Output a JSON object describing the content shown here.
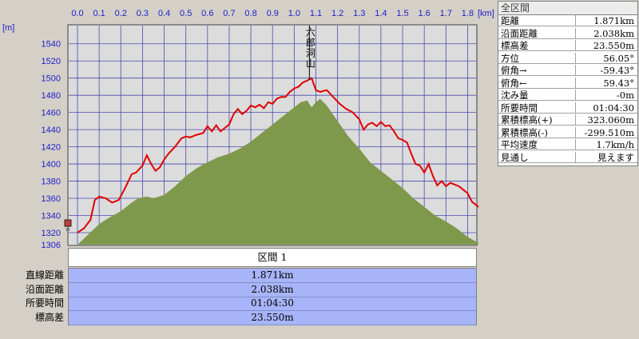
{
  "summary": {
    "title": "全区間",
    "rows": [
      {
        "label": "距離",
        "value": "1.871km"
      },
      {
        "label": "沿面距離",
        "value": "2.038km"
      },
      {
        "label": "標高差",
        "value": "23.550m"
      },
      {
        "label": "方位",
        "value": "56.05°"
      },
      {
        "label": "俯角→",
        "value": "-59.43°"
      },
      {
        "label": "俯角←",
        "value": "59.43°"
      },
      {
        "label": "沈み量",
        "value": "-0m"
      },
      {
        "label": "所要時間",
        "value": "01:04:30"
      },
      {
        "label": "累積標高(+)",
        "value": "323.060m"
      },
      {
        "label": "累積標高(-)",
        "value": "-299.510m"
      },
      {
        "label": "平均速度",
        "value": "1.7km/h"
      },
      {
        "label": "見通し",
        "value": "見えます"
      }
    ]
  },
  "section": {
    "header": "区間 1",
    "labels": [
      "直線距離",
      "沿面距離",
      "所要時間",
      "標高差"
    ],
    "values": [
      "1.871km",
      "2.038km",
      "01:04:30",
      "23.550m"
    ]
  },
  "chart_data": {
    "type": "line",
    "x_unit": "[km]",
    "y_unit": "[m]",
    "xlim": [
      0,
      1.85
    ],
    "ylim": [
      1306,
      1550
    ],
    "x_ticks": [
      "0.0",
      "0.1",
      "0.2",
      "0.3",
      "0.4",
      "0.5",
      "0.6",
      "0.7",
      "0.8",
      "0.9",
      "1.0",
      "1.1",
      "1.2",
      "1.3",
      "1.4",
      "1.5",
      "1.6",
      "1.7",
      "1.8"
    ],
    "y_ticks": [
      "1540",
      "1520",
      "1500",
      "1480",
      "1460",
      "1440",
      "1420",
      "1400",
      "1380",
      "1360",
      "1340",
      "1320",
      "1306"
    ],
    "grid": true,
    "peak_label": "六郎洞山",
    "peak_x": 1.07,
    "series": [
      {
        "role": "route-elevation",
        "color": "#e00000",
        "x": [
          0.0,
          0.03,
          0.06,
          0.08,
          0.1,
          0.13,
          0.16,
          0.19,
          0.22,
          0.25,
          0.27,
          0.3,
          0.32,
          0.34,
          0.36,
          0.38,
          0.4,
          0.42,
          0.45,
          0.48,
          0.5,
          0.52,
          0.55,
          0.58,
          0.6,
          0.62,
          0.64,
          0.66,
          0.68,
          0.7,
          0.72,
          0.74,
          0.76,
          0.78,
          0.8,
          0.82,
          0.84,
          0.86,
          0.88,
          0.9,
          0.92,
          0.94,
          0.96,
          0.98,
          1.0,
          1.02,
          1.04,
          1.06,
          1.08,
          1.1,
          1.12,
          1.15,
          1.18,
          1.21,
          1.24,
          1.27,
          1.3,
          1.32,
          1.34,
          1.36,
          1.38,
          1.4,
          1.42,
          1.44,
          1.46,
          1.48,
          1.5,
          1.52,
          1.54,
          1.56,
          1.58,
          1.6,
          1.62,
          1.64,
          1.66,
          1.68,
          1.7,
          1.72,
          1.74,
          1.76,
          1.78,
          1.8,
          1.82,
          1.85
        ],
        "y": [
          1320,
          1325,
          1335,
          1358,
          1362,
          1360,
          1355,
          1358,
          1372,
          1388,
          1390,
          1398,
          1410,
          1400,
          1392,
          1396,
          1405,
          1412,
          1420,
          1430,
          1432,
          1431,
          1434,
          1436,
          1444,
          1438,
          1445,
          1438,
          1442,
          1446,
          1458,
          1464,
          1458,
          1462,
          1468,
          1466,
          1469,
          1465,
          1472,
          1470,
          1476,
          1478,
          1478,
          1484,
          1488,
          1490,
          1495,
          1497,
          1500,
          1486,
          1484,
          1486,
          1478,
          1470,
          1464,
          1460,
          1452,
          1440,
          1446,
          1448,
          1444,
          1449,
          1444,
          1445,
          1438,
          1430,
          1428,
          1425,
          1412,
          1400,
          1398,
          1390,
          1400,
          1386,
          1375,
          1380,
          1374,
          1378,
          1376,
          1374,
          1370,
          1366,
          1356,
          1350
        ]
      },
      {
        "role": "terrain-cross-section",
        "color": "#7f994c",
        "x": [
          0.0,
          0.05,
          0.1,
          0.15,
          0.2,
          0.25,
          0.28,
          0.32,
          0.35,
          0.4,
          0.45,
          0.5,
          0.55,
          0.6,
          0.65,
          0.7,
          0.75,
          0.8,
          0.85,
          0.9,
          0.95,
          1.0,
          1.03,
          1.06,
          1.08,
          1.1,
          1.12,
          1.15,
          1.2,
          1.25,
          1.3,
          1.35,
          1.4,
          1.45,
          1.5,
          1.55,
          1.6,
          1.65,
          1.7,
          1.75,
          1.8,
          1.85
        ],
        "y": [
          1306,
          1318,
          1330,
          1338,
          1345,
          1355,
          1360,
          1362,
          1360,
          1364,
          1374,
          1386,
          1395,
          1402,
          1408,
          1412,
          1418,
          1426,
          1436,
          1446,
          1456,
          1466,
          1472,
          1474,
          1466,
          1472,
          1476,
          1468,
          1450,
          1432,
          1418,
          1402,
          1392,
          1382,
          1372,
          1360,
          1350,
          1340,
          1333,
          1325,
          1315,
          1308
        ]
      }
    ]
  }
}
